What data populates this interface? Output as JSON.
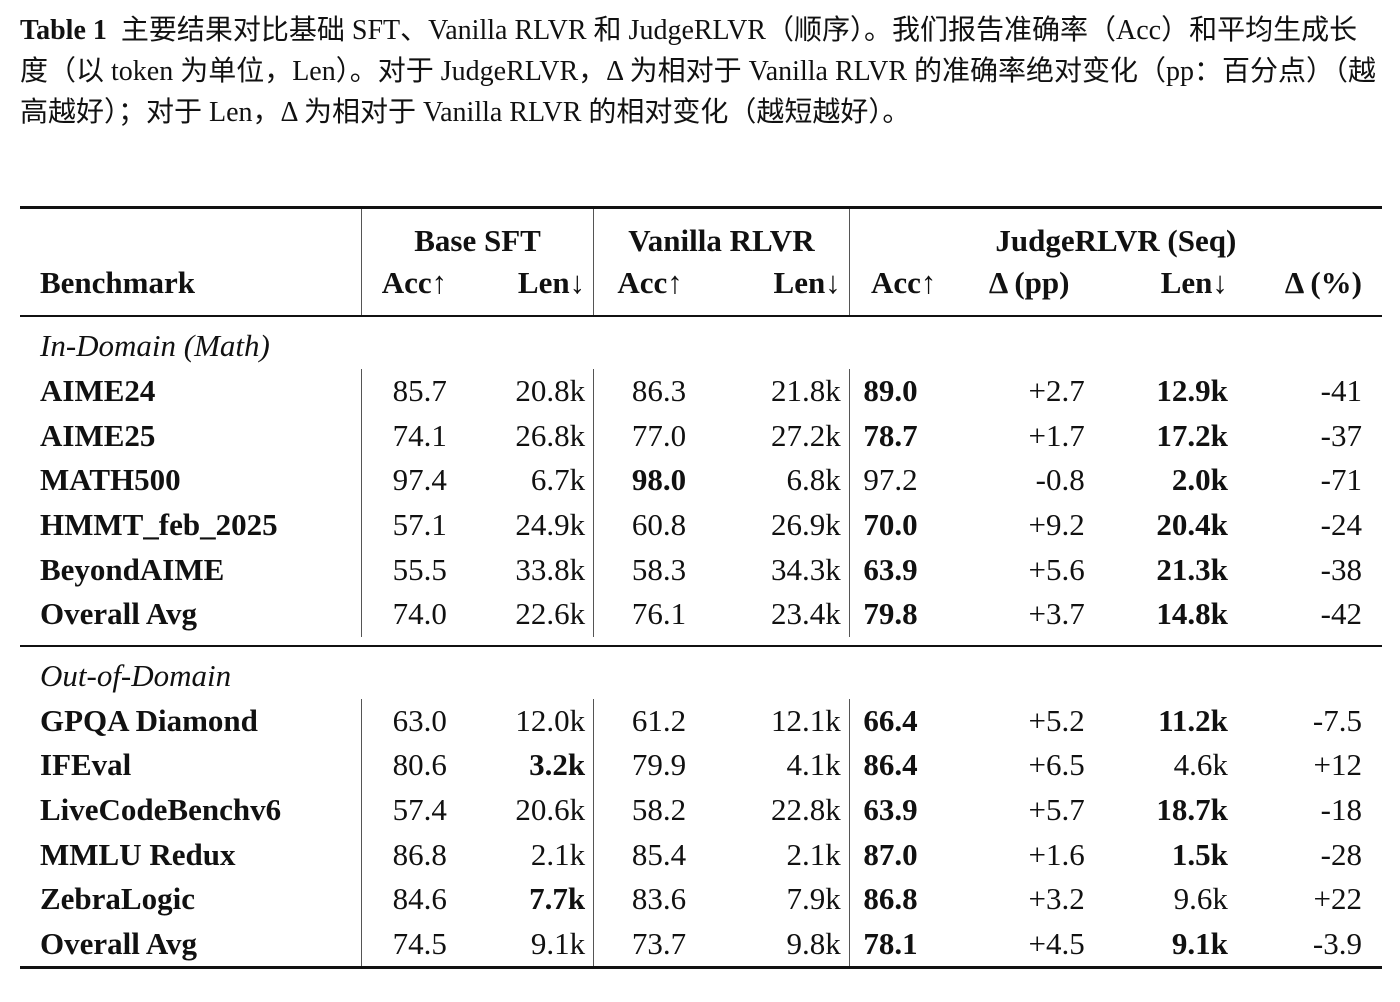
{
  "caption": {
    "label": "Table 1",
    "text": "主要结果对比基础 SFT、Vanilla RLVR 和 JudgeRLVR（顺序）。我们报告准确率（Acc）和平均生成长度（以 token 为单位，Len）。对于 JudgeRLVR，Δ 为相对于 Vanilla RLVR 的准确率绝对变化（pp：百分点）（越高越好）；对于 Len，Δ 为相对于 Vanilla RLVR 的相对变化（越短越好）。"
  },
  "header": {
    "groups": [
      "Base SFT",
      "Vanilla RLVR",
      "JudgeRLVR (Seq)"
    ],
    "benchmark": "Benchmark",
    "columns": [
      "Acc↑",
      "Len↓",
      "Acc↑",
      "Len↓",
      "Acc↑",
      "Δ (pp)",
      "Len↓",
      "Δ (%)"
    ]
  },
  "sections": [
    {
      "title": "In-Domain (Math)",
      "rows": [
        {
          "name": "AIME24",
          "v": [
            "85.7",
            "20.8k",
            "86.3",
            "21.8k",
            "89.0",
            "+2.7",
            "12.9k",
            "-41"
          ],
          "bold": [
            4,
            6
          ]
        },
        {
          "name": "AIME25",
          "v": [
            "74.1",
            "26.8k",
            "77.0",
            "27.2k",
            "78.7",
            "+1.7",
            "17.2k",
            "-37"
          ],
          "bold": [
            4,
            6
          ]
        },
        {
          "name": "MATH500",
          "v": [
            "97.4",
            "6.7k",
            "98.0",
            "6.8k",
            "97.2",
            "-0.8",
            "2.0k",
            "-71"
          ],
          "bold": [
            2,
            6
          ]
        },
        {
          "name": "HMMT_feb_2025",
          "v": [
            "57.1",
            "24.9k",
            "60.8",
            "26.9k",
            "70.0",
            "+9.2",
            "20.4k",
            "-24"
          ],
          "bold": [
            4,
            6
          ]
        },
        {
          "name": "BeyondAIME",
          "v": [
            "55.5",
            "33.8k",
            "58.3",
            "34.3k",
            "63.9",
            "+5.6",
            "21.3k",
            "-38"
          ],
          "bold": [
            4,
            6
          ]
        },
        {
          "name": "Overall Avg",
          "v": [
            "74.0",
            "22.6k",
            "76.1",
            "23.4k",
            "79.8",
            "+3.7",
            "14.8k",
            "-42"
          ],
          "bold": [
            4,
            6
          ]
        }
      ]
    },
    {
      "title": "Out-of-Domain",
      "rows": [
        {
          "name": "GPQA Diamond",
          "v": [
            "63.0",
            "12.0k",
            "61.2",
            "12.1k",
            "66.4",
            "+5.2",
            "11.2k",
            "-7.5"
          ],
          "bold": [
            4,
            6
          ]
        },
        {
          "name": "IFEval",
          "v": [
            "80.6",
            "3.2k",
            "79.9",
            "4.1k",
            "86.4",
            "+6.5",
            "4.6k",
            "+12"
          ],
          "bold": [
            1,
            4
          ]
        },
        {
          "name": "LiveCodeBenchv6",
          "v": [
            "57.4",
            "20.6k",
            "58.2",
            "22.8k",
            "63.9",
            "+5.7",
            "18.7k",
            "-18"
          ],
          "bold": [
            4,
            6
          ]
        },
        {
          "name": "MMLU Redux",
          "v": [
            "86.8",
            "2.1k",
            "85.4",
            "2.1k",
            "87.0",
            "+1.6",
            "1.5k",
            "-28"
          ],
          "bold": [
            4,
            6
          ]
        },
        {
          "name": "ZebraLogic",
          "v": [
            "84.6",
            "7.7k",
            "83.6",
            "7.9k",
            "86.8",
            "+3.2",
            "9.6k",
            "+22"
          ],
          "bold": [
            1,
            4
          ]
        },
        {
          "name": "Overall Avg",
          "v": [
            "74.5",
            "9.1k",
            "73.7",
            "9.8k",
            "78.1",
            "+4.5",
            "9.1k",
            "-3.9"
          ],
          "bold": [
            4,
            6
          ]
        }
      ]
    }
  ]
}
